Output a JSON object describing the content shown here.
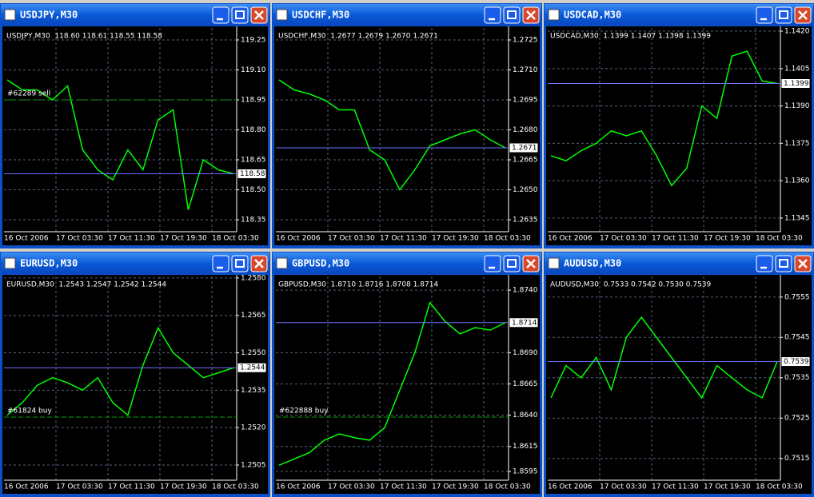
{
  "windows": [
    {
      "title": "USDJPY,M30",
      "header": "USDJPY,M30  118.60 118.61 118.55 118.58",
      "price": 118.58,
      "order": "#62289 sell",
      "ylim": [
        118.29,
        119.31
      ],
      "yticks": [
        119.25,
        {
          "value": 119.1,
          "label": "119.10"
        },
        118.95,
        {
          "value": 118.8,
          "label": "118.80"
        },
        118.65,
        {
          "value": 118.5,
          "label": "118.50"
        },
        118.35
      ],
      "time_labels": [
        "16 Oct 2006",
        "17 Oct 03:30",
        "17 Oct 11:30",
        "17 Oct 19:30",
        "18 Oct 03:30"
      ],
      "closes": [
        119.05,
        119.0,
        119.0,
        118.95,
        119.02,
        118.7,
        118.6,
        118.55,
        118.7,
        118.6,
        118.85,
        118.9,
        118.4,
        118.65,
        118.6,
        118.58
      ]
    },
    {
      "title": "USDCHF,M30",
      "header": "USDCHF,M30  1.2677 1.2679 1.2670 1.2671",
      "price": 1.2671,
      "ylim": [
        1.2629,
        1.2731
      ],
      "yticks": [
        1.2725,
        {
          "value": 1.271,
          "label": "1.2710"
        },
        1.2695,
        {
          "value": 1.268,
          "label": "1.2680"
        },
        1.2665,
        {
          "value": 1.265,
          "label": "1.2650"
        },
        1.2635
      ],
      "time_labels": [
        "16 Oct 2006",
        "17 Oct 03:30",
        "17 Oct 11:30",
        "17 Oct 19:30",
        "18 Oct 03:30"
      ],
      "closes": [
        1.2705,
        1.27,
        1.2698,
        1.2695,
        1.269,
        1.269,
        1.267,
        1.2665,
        1.265,
        1.266,
        1.2672,
        1.2675,
        1.2678,
        1.268,
        1.2675,
        1.2671
      ]
    },
    {
      "title": "USDCAD,M30",
      "header": "USDCAD,M30  1.1399 1.1407 1.1398 1.1399",
      "price": 1.1399,
      "ylim": [
        1.13395,
        1.14213
      ],
      "yticks": [
        {
          "value": 1.142,
          "label": "1.1420"
        },
        1.1405,
        {
          "value": 1.139,
          "label": "1.1390"
        },
        1.1375,
        {
          "value": 1.136,
          "label": "1.1360"
        },
        1.1345
      ],
      "time_labels": [
        "16 Oct 2006",
        "17 Oct 03:30",
        "17 Oct 11:30",
        "17 Oct 19:30",
        "18 Oct 03:30"
      ],
      "closes": [
        1.137,
        1.1368,
        1.1372,
        1.1375,
        1.138,
        1.1378,
        1.138,
        1.137,
        1.1358,
        1.1365,
        1.139,
        1.1385,
        1.141,
        1.1412,
        1.14,
        1.1399
      ]
    },
    {
      "title": "EURUSD,M30",
      "header": "EURUSD,M30  1.2543 1.2547 1.2542 1.2544",
      "price": 1.2544,
      "order": "#61824 buy",
      "ylim": [
        1.24989,
        1.25806
      ],
      "yticks": [
        {
          "value": 1.258,
          "label": "1.2580"
        },
        1.2565,
        {
          "value": 1.255,
          "label": "1.2550"
        },
        1.2535,
        {
          "value": 1.252,
          "label": "1.2520"
        },
        1.2505
      ],
      "time_labels": [
        "16 Oct 2006",
        "17 Oct 03:30",
        "17 Oct 11:30",
        "17 Oct 19:30",
        "18 Oct 03:30"
      ],
      "closes": [
        1.2525,
        1.253,
        1.2537,
        1.254,
        1.2538,
        1.2535,
        1.254,
        1.253,
        1.2525,
        1.2545,
        1.256,
        1.255,
        1.2545,
        1.254,
        1.2542,
        1.2544
      ]
    },
    {
      "title": "GBPUSD,M30",
      "header": "GBPUSD,M30  1.8710 1.8716 1.8708 1.8714",
      "price": 1.8714,
      "order": "#622888 buy",
      "ylim": [
        1.8588,
        1.87509
      ],
      "yticks": [
        {
          "value": 1.874,
          "label": "1.8740"
        },
        {
          "value": 1.869,
          "label": "1.8690"
        },
        1.8665,
        {
          "value": 1.864,
          "label": "1.8640"
        },
        1.8615,
        1.8595
      ],
      "time_labels": [
        "16 Oct 2006",
        "17 Oct 03:30",
        "17 Oct 11:30",
        "17 Oct 19:30",
        "18 Oct 03:30"
      ],
      "closes": [
        1.86,
        1.8605,
        1.861,
        1.862,
        1.8625,
        1.8622,
        1.862,
        1.863,
        1.866,
        1.869,
        1.873,
        1.8715,
        1.8705,
        1.871,
        1.8708,
        1.8714
      ]
    },
    {
      "title": "AUDUSD,M30",
      "header": "AUDUSD,M30  0.7533 0.7542 0.7530 0.7539",
      "price": 0.7539,
      "ylim": [
        0.75096,
        0.75601
      ],
      "yticks": [
        0.7555,
        0.7545,
        0.7535,
        0.7525,
        0.7515
      ],
      "time_labels": [
        "16 Oct 2006",
        "17 Oct 03:30",
        "17 Oct 11:30",
        "17 Oct 19:30",
        "18 Oct 03:30"
      ],
      "closes": [
        0.753,
        0.7538,
        0.7535,
        0.754,
        0.7532,
        0.7545,
        0.755,
        0.7545,
        0.754,
        0.7535,
        0.753,
        0.7538,
        0.7535,
        0.7532,
        0.753,
        0.7539
      ]
    }
  ]
}
